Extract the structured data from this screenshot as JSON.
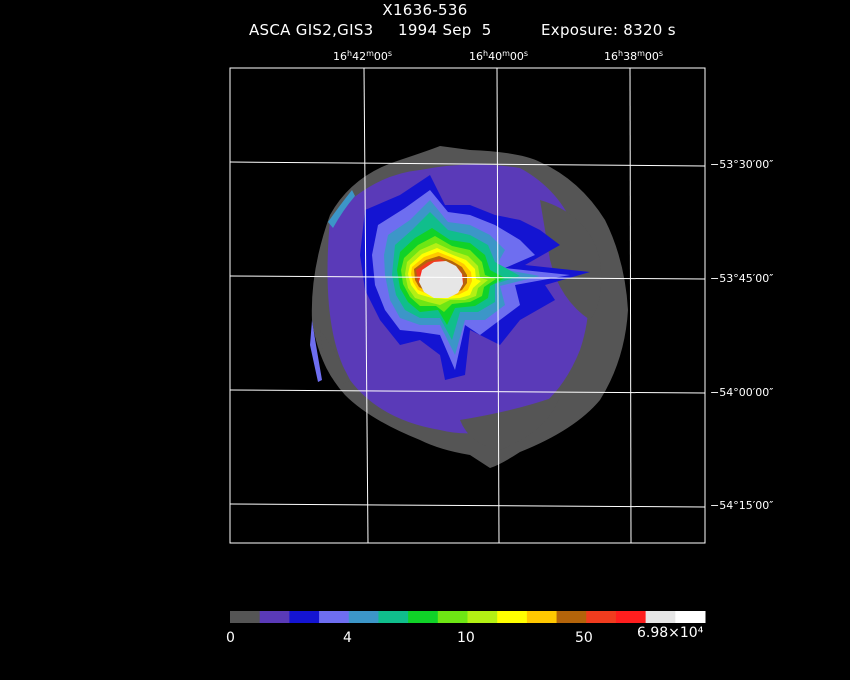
{
  "header": {
    "source": "X1636-536",
    "instrument": "ASCA GIS2,GIS3",
    "date": "1994 Sep  5",
    "exposure": "Exposure: 8320 s"
  },
  "ra_ticks": [
    {
      "h": "16",
      "m": "42",
      "s": "00"
    },
    {
      "h": "16",
      "m": "40",
      "s": "00"
    },
    {
      "h": "16",
      "m": "38",
      "s": "00"
    }
  ],
  "dec_ticks": [
    "−53°30′00″",
    "−53°45′00″",
    "−54°00′00″",
    "−54°15′00″"
  ],
  "colorbar": {
    "colors": [
      "#555555",
      "#5a3ab8",
      "#1414d2",
      "#6e6ef0",
      "#3c96c8",
      "#10be8c",
      "#10d228",
      "#6ee614",
      "#b4f014",
      "#ffff00",
      "#ffc800",
      "#b4640a",
      "#f03c1e",
      "#ff1e1e",
      "#e6e6e6",
      "#ffffff"
    ],
    "labels": [
      "0",
      "4",
      "10",
      "50",
      "6.98×10⁴"
    ]
  }
}
